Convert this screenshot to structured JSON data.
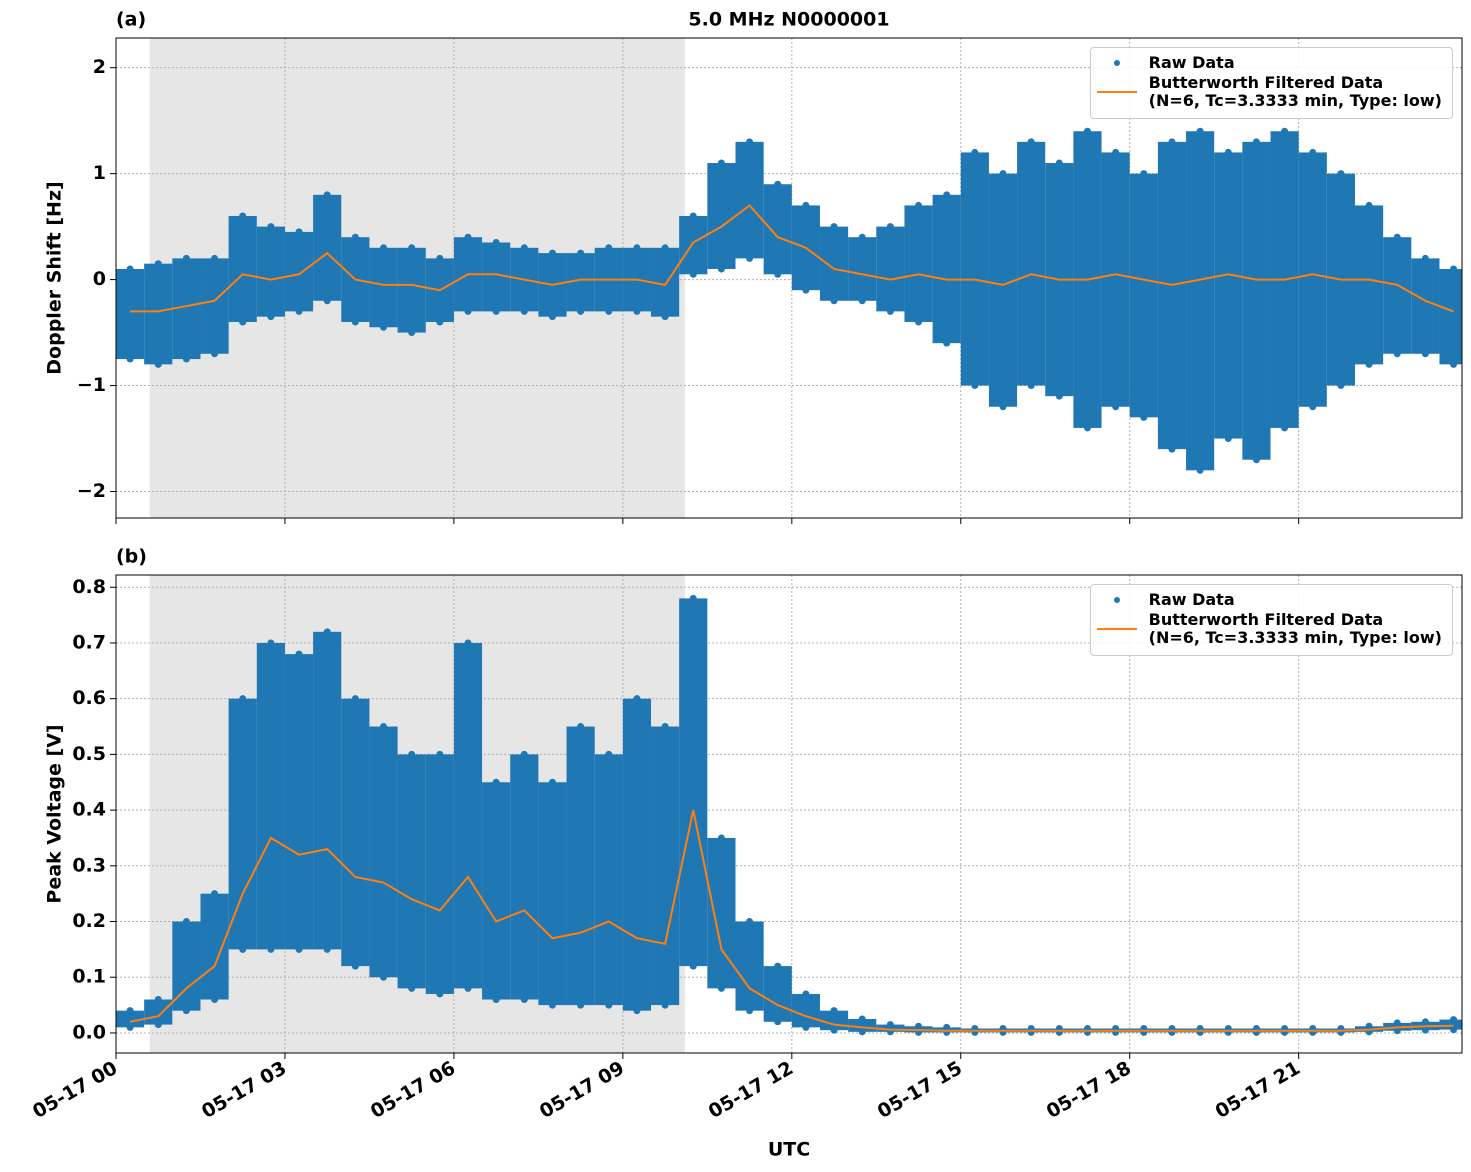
{
  "chart_data": [
    {
      "type": "line",
      "panel_label": "(a)",
      "title": "5.0 MHz N0000001",
      "ylabel": "Doppler Shift [Hz]",
      "xlim": [
        0,
        23.9
      ],
      "ylim": [
        -2.25,
        2.28
      ],
      "xticks": [
        0,
        3,
        6,
        9,
        12,
        15,
        18,
        21
      ],
      "yticks": [
        {
          "value": -2,
          "label": "−2"
        },
        {
          "value": -1,
          "label": "−1"
        },
        0,
        1,
        2
      ],
      "grid": true,
      "shade": [
        0.6,
        10.1
      ],
      "shade_color": "#e6e6e6",
      "legend": "upper right",
      "x": [
        0.25,
        0.75,
        1.25,
        1.75,
        2.25,
        2.75,
        3.25,
        3.75,
        4.25,
        4.75,
        5.25,
        5.75,
        6.25,
        6.75,
        7.25,
        7.75,
        8.25,
        8.75,
        9.25,
        9.75,
        10.25,
        10.75,
        11.25,
        11.75,
        12.25,
        12.75,
        13.25,
        13.75,
        14.25,
        14.75,
        15.25,
        15.75,
        16.25,
        16.75,
        17.25,
        17.75,
        18.25,
        18.75,
        19.25,
        19.75,
        20.25,
        20.75,
        21.25,
        21.75,
        22.25,
        22.75,
        23.25,
        23.75
      ],
      "series": [
        {
          "name": "Raw Data",
          "mode": "markers",
          "color": "#1f77b4",
          "values": [
            0.1,
            0.15,
            0.2,
            0.2,
            0.6,
            0.5,
            0.45,
            0.8,
            0.4,
            0.3,
            0.3,
            0.2,
            0.4,
            0.35,
            0.3,
            0.25,
            0.25,
            0.3,
            0.3,
            0.3,
            0.6,
            1.1,
            1.3,
            0.9,
            0.7,
            0.5,
            0.4,
            0.5,
            0.7,
            0.8,
            1.2,
            1.0,
            1.3,
            1.1,
            1.4,
            1.2,
            1.0,
            1.3,
            1.4,
            1.2,
            1.3,
            1.4,
            1.2,
            1.0,
            0.7,
            0.4,
            0.2,
            0.1
          ],
          "values_low": [
            -0.75,
            -0.8,
            -0.75,
            -0.7,
            -0.4,
            -0.35,
            -0.3,
            -0.2,
            -0.4,
            -0.45,
            -0.5,
            -0.4,
            -0.3,
            -0.3,
            -0.3,
            -0.35,
            -0.3,
            -0.3,
            -0.3,
            -0.35,
            0.05,
            0.1,
            0.2,
            0.05,
            -0.1,
            -0.2,
            -0.2,
            -0.3,
            -0.4,
            -0.6,
            -1.0,
            -1.2,
            -1.0,
            -1.1,
            -1.4,
            -1.2,
            -1.3,
            -1.6,
            -1.8,
            -1.5,
            -1.7,
            -1.4,
            -1.2,
            -1.0,
            -0.8,
            -0.7,
            -0.7,
            -0.8
          ]
        },
        {
          "name": "Butterworth Filtered Data\n(N=6, Tc=3.3333 min, Type: low)",
          "mode": "line",
          "color": "#ff7f0e",
          "values": [
            -0.3,
            -0.3,
            -0.25,
            -0.2,
            0.05,
            0.0,
            0.05,
            0.25,
            0.0,
            -0.05,
            -0.05,
            -0.1,
            0.05,
            0.05,
            0.0,
            -0.05,
            0.0,
            0.0,
            0.0,
            -0.05,
            0.35,
            0.5,
            0.7,
            0.4,
            0.3,
            0.1,
            0.05,
            0.0,
            0.05,
            0.0,
            0.0,
            -0.05,
            0.05,
            0.0,
            0.0,
            0.05,
            0.0,
            -0.05,
            0.0,
            0.05,
            0.0,
            0.0,
            0.05,
            0.0,
            0.0,
            -0.05,
            -0.2,
            -0.3
          ]
        }
      ]
    },
    {
      "type": "line",
      "panel_label": "(b)",
      "ylabel": "Peak Voltage [V]",
      "xlabel": "UTC",
      "xlim": [
        0,
        23.9
      ],
      "ylim": [
        -0.036,
        0.822
      ],
      "xticks": [
        {
          "value": 0,
          "label": "05-17 00"
        },
        {
          "value": 3,
          "label": "05-17 03"
        },
        {
          "value": 6,
          "label": "05-17 06"
        },
        {
          "value": 9,
          "label": "05-17 09"
        },
        {
          "value": 12,
          "label": "05-17 12"
        },
        {
          "value": 15,
          "label": "05-17 15"
        },
        {
          "value": 18,
          "label": "05-17 18"
        },
        {
          "value": 21,
          "label": "05-17 21"
        }
      ],
      "yticks": [
        {
          "value": 0,
          "label": "0.0"
        },
        0.1,
        0.2,
        0.3,
        0.4,
        0.5,
        0.6,
        0.7,
        0.8
      ],
      "grid": true,
      "shade": [
        0.6,
        10.1
      ],
      "shade_color": "#e6e6e6",
      "legend": "upper right",
      "x": [
        0.25,
        0.75,
        1.25,
        1.75,
        2.25,
        2.75,
        3.25,
        3.75,
        4.25,
        4.75,
        5.25,
        5.75,
        6.25,
        6.75,
        7.25,
        7.75,
        8.25,
        8.75,
        9.25,
        9.75,
        10.25,
        10.75,
        11.25,
        11.75,
        12.25,
        12.75,
        13.25,
        13.75,
        14.25,
        14.75,
        15.25,
        15.75,
        16.25,
        16.75,
        17.25,
        17.75,
        18.25,
        18.75,
        19.25,
        19.75,
        20.25,
        20.75,
        21.25,
        21.75,
        22.25,
        22.75,
        23.25,
        23.75
      ],
      "series": [
        {
          "name": "Raw Data",
          "mode": "markers",
          "color": "#1f77b4",
          "values": [
            0.04,
            0.06,
            0.2,
            0.25,
            0.6,
            0.7,
            0.68,
            0.72,
            0.6,
            0.55,
            0.5,
            0.5,
            0.7,
            0.45,
            0.5,
            0.45,
            0.55,
            0.5,
            0.6,
            0.55,
            0.78,
            0.35,
            0.2,
            0.12,
            0.07,
            0.04,
            0.025,
            0.015,
            0.012,
            0.01,
            0.008,
            0.008,
            0.008,
            0.008,
            0.008,
            0.008,
            0.008,
            0.008,
            0.008,
            0.008,
            0.008,
            0.008,
            0.008,
            0.008,
            0.012,
            0.018,
            0.02,
            0.024
          ],
          "values_low": [
            0.01,
            0.015,
            0.04,
            0.06,
            0.15,
            0.15,
            0.15,
            0.15,
            0.12,
            0.1,
            0.08,
            0.07,
            0.08,
            0.06,
            0.06,
            0.05,
            0.05,
            0.05,
            0.04,
            0.05,
            0.12,
            0.08,
            0.04,
            0.02,
            0.01,
            0.005,
            0.002,
            0.002,
            0.001,
            0.001,
            0.001,
            0.001,
            0.001,
            0.001,
            0.001,
            0.001,
            0.001,
            0.001,
            0.001,
            0.001,
            0.001,
            0.001,
            0.001,
            0.001,
            0.002,
            0.004,
            0.005,
            0.006
          ]
        },
        {
          "name": "Butterworth Filtered Data\n(N=6, Tc=3.3333 min, Type: low)",
          "mode": "line",
          "color": "#ff7f0e",
          "values": [
            0.02,
            0.03,
            0.08,
            0.12,
            0.25,
            0.35,
            0.32,
            0.33,
            0.28,
            0.27,
            0.24,
            0.22,
            0.28,
            0.2,
            0.22,
            0.17,
            0.18,
            0.2,
            0.17,
            0.16,
            0.4,
            0.15,
            0.08,
            0.05,
            0.03,
            0.015,
            0.01,
            0.006,
            0.005,
            0.004,
            0.004,
            0.004,
            0.004,
            0.004,
            0.004,
            0.004,
            0.004,
            0.004,
            0.004,
            0.004,
            0.004,
            0.004,
            0.004,
            0.004,
            0.006,
            0.01,
            0.012,
            0.013
          ]
        }
      ]
    }
  ]
}
